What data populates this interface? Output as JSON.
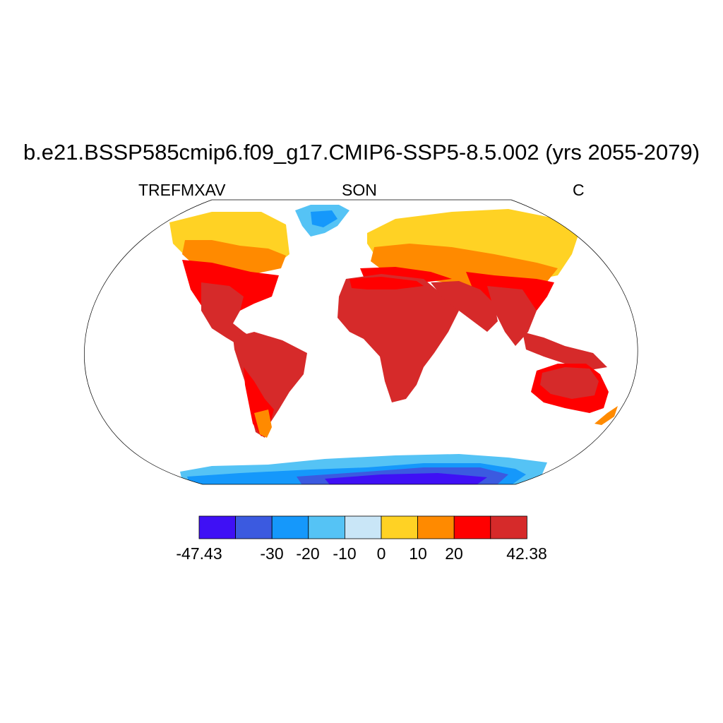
{
  "title": "b.e21.BSSP585cmip6.f09_g17.CMIP6-SSP5-8.5.002 (yrs 2055-2079)",
  "left_string": "TREFMXAV",
  "center_string": "SON",
  "right_string": "C",
  "colorbar": {
    "colors": [
      "#3f10f5",
      "#3b5ae0",
      "#1598fb",
      "#55c3f5",
      "#c9e6f7",
      "#ffd224",
      "#ff8a00",
      "#ff0000",
      "#d62a2a"
    ],
    "min_label": "-47.43",
    "max_label": "42.38",
    "levels": [
      "-30",
      "-20",
      "-10",
      "0",
      "10",
      "20"
    ]
  },
  "colors": {
    "land_outline": "#000000",
    "ocean": "#ffffff"
  }
}
